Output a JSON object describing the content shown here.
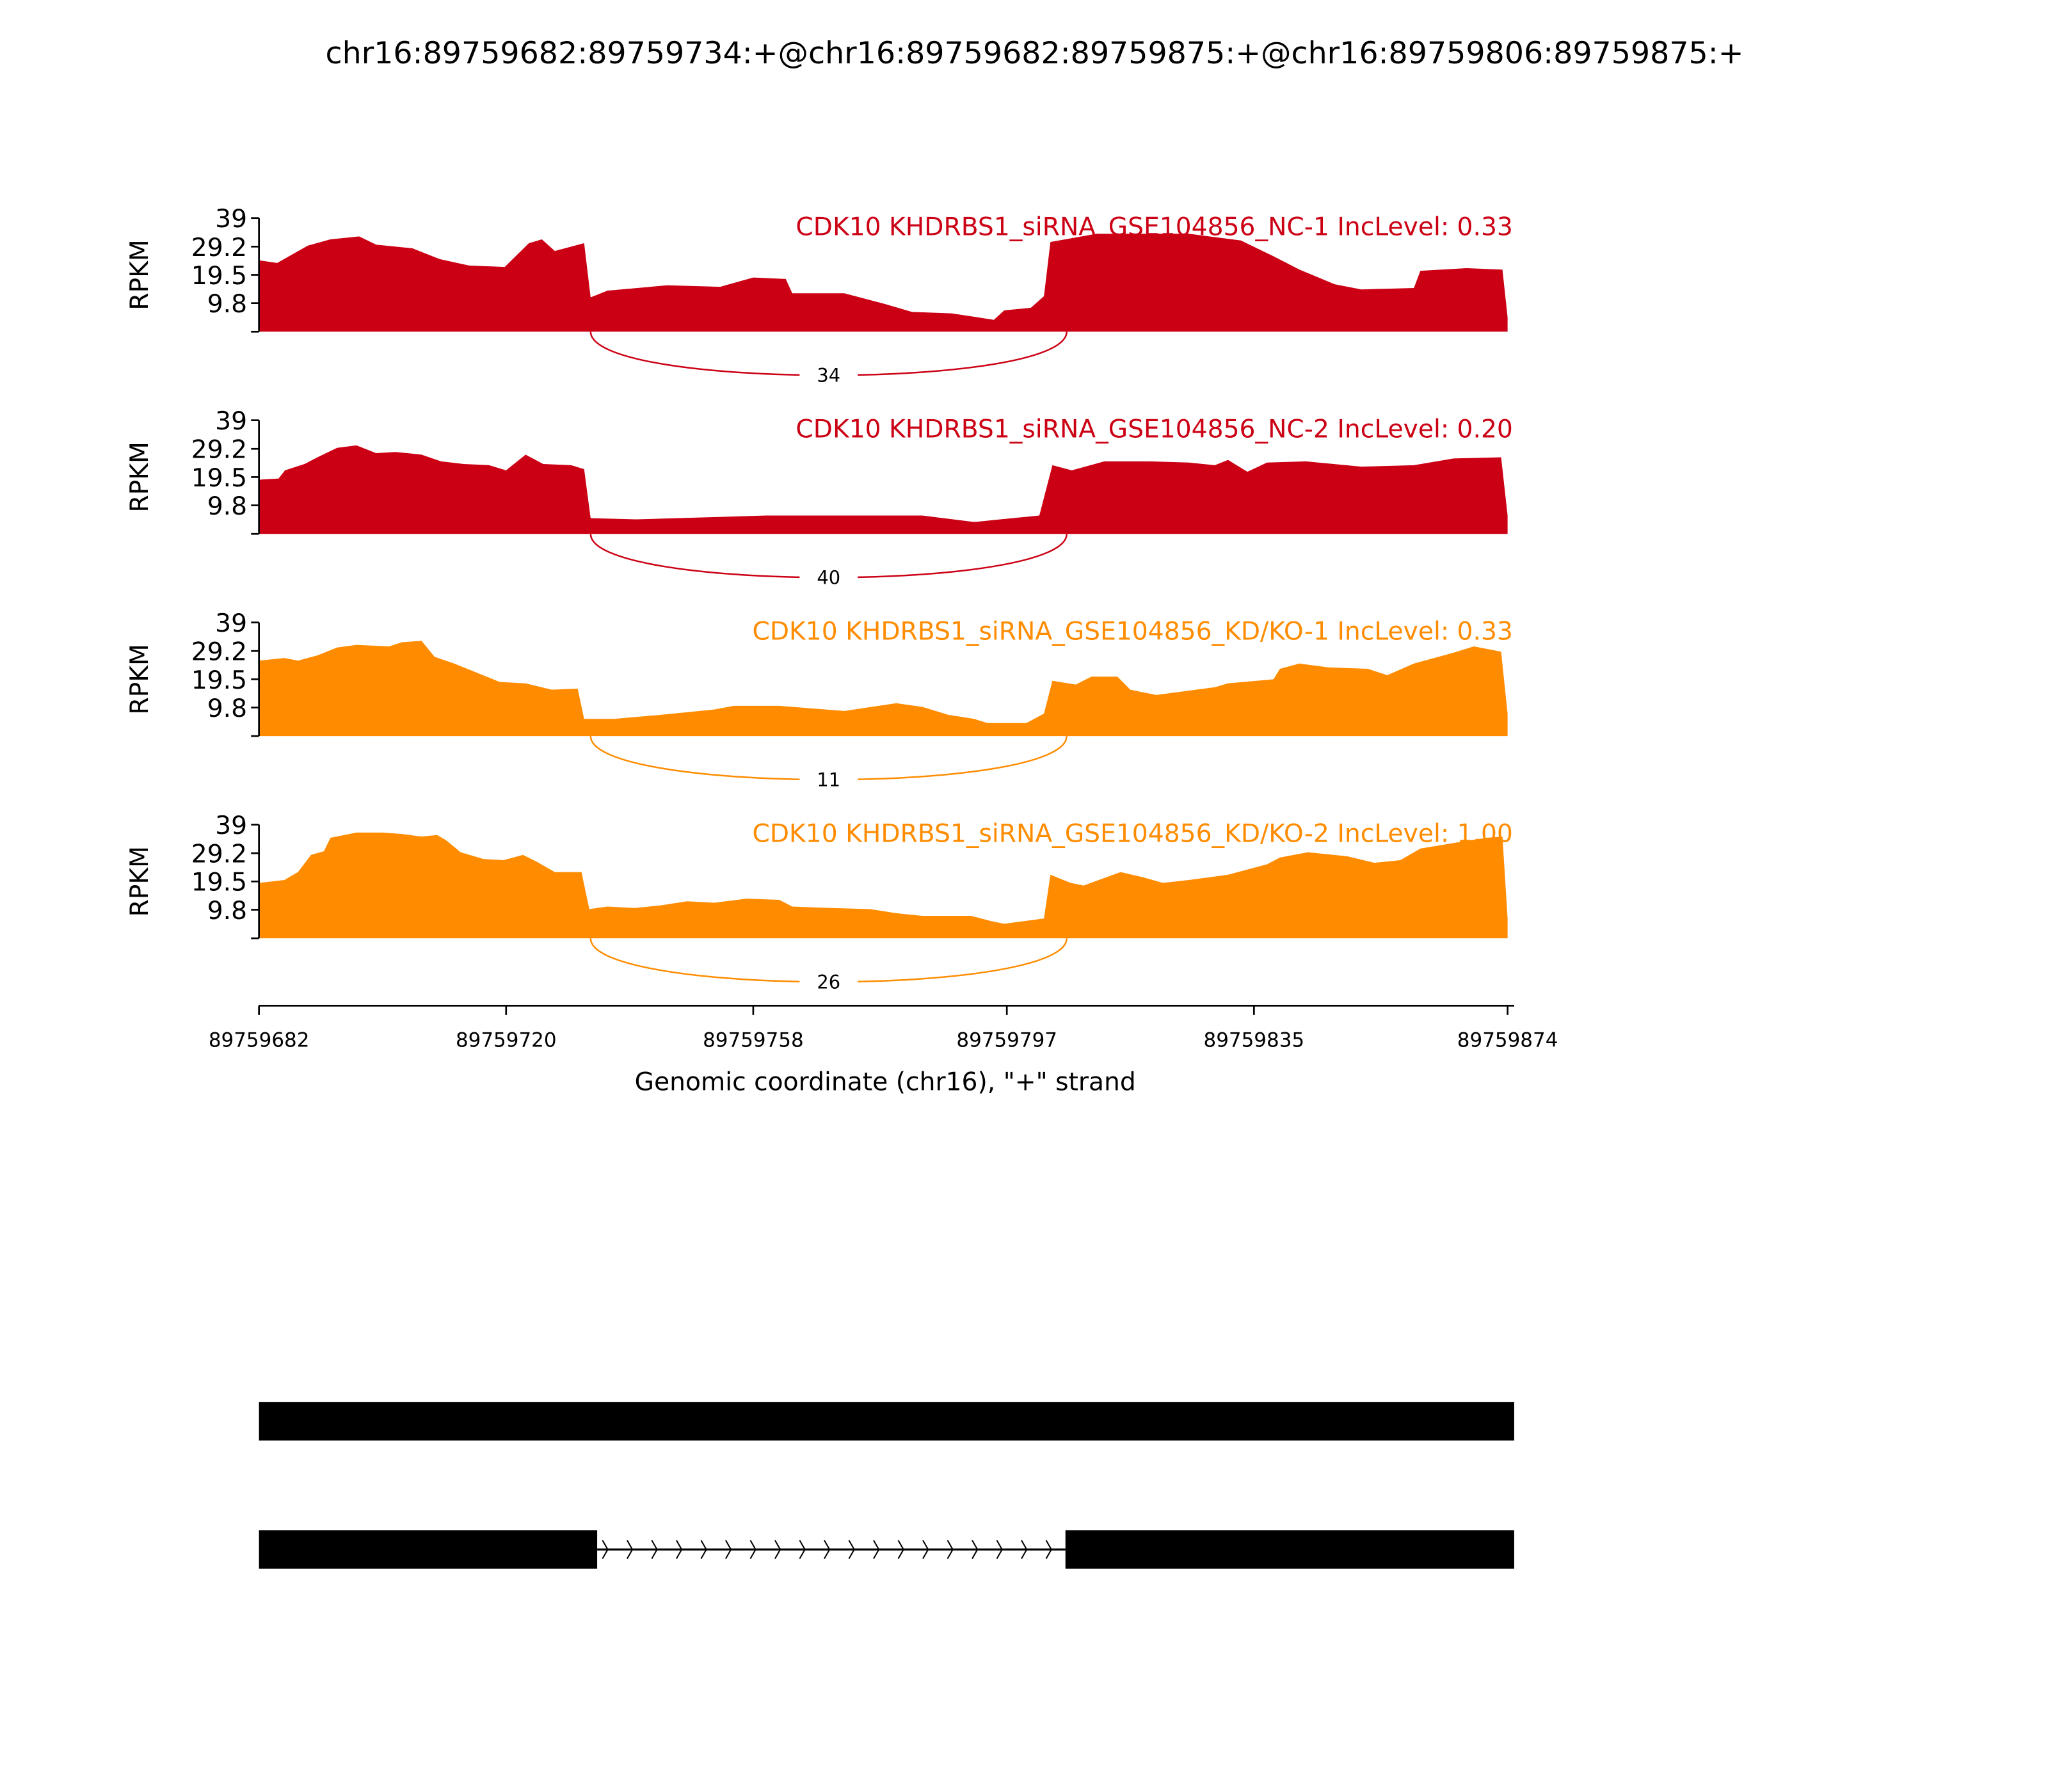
{
  "chart_data": {
    "type": "area",
    "title": "chr16:89759682:89759734:+@chr16:89759682:89759875:+@chr16:89759806:89759875:+",
    "xlabel": "Genomic coordinate (chr16), \"+\" strand",
    "ylabel": "RPKM",
    "xlim": [
      89759682,
      89759874
    ],
    "xticks": [
      "89759682",
      "89759720",
      "89759758",
      "89759797",
      "89759835",
      "89759874"
    ],
    "ylim": [
      0,
      39
    ],
    "yticks": [
      "9.8",
      "19.5",
      "29.2",
      "39"
    ],
    "junction": {
      "start": 89759733,
      "end": 89759806
    },
    "colors": {
      "nc": "#CC0014",
      "kd": "#FF8C00",
      "gene": "#000000"
    },
    "tracks": [
      {
        "label": "CDK10 KHDRBS1_siRNA_GSE104856_NC-1 IncLevel: 0.33",
        "color": "#CC0014",
        "junction_count": "34",
        "offsets": [
          0,
          2.8,
          7.5,
          11,
          15.4,
          18,
          23.6,
          27.8,
          32.3,
          37.8,
          41.5,
          43.5,
          45.5,
          50,
          51,
          53.6,
          62.8,
          70.9,
          76,
          81,
          82,
          90,
          96.3,
          100.4,
          106.5,
          113,
          114.6,
          118.7,
          120.7,
          121.7,
          128.8,
          143,
          151,
          156,
          160,
          165.4,
          169.5,
          177.6,
          178.6,
          185.7,
          191.2,
          192
        ],
        "values": [
          24.5,
          23.6,
          29.5,
          31.7,
          32.7,
          29.9,
          28.6,
          24.9,
          22.7,
          22.2,
          30.4,
          31.7,
          27.7,
          30.4,
          11.8,
          14.1,
          15.9,
          15.4,
          18.6,
          18.1,
          13.2,
          13.2,
          9.5,
          6.8,
          6.3,
          4.1,
          7.3,
          8.2,
          12.2,
          30.8,
          33.6,
          33.6,
          31.3,
          25.9,
          21.3,
          16.3,
          14.5,
          15,
          20.9,
          21.8,
          21.3,
          5
        ]
      },
      {
        "label": "CDK10 KHDRBS1_siRNA_GSE104856_NC-2 IncLevel: 0.20",
        "color": "#CC0014",
        "junction_count": "40",
        "offsets": [
          0,
          3,
          4,
          7,
          9,
          12,
          15,
          18,
          21,
          25,
          28,
          31.5,
          35.4,
          38,
          41,
          43.7,
          48,
          50,
          51,
          58,
          78,
          102,
          110,
          114,
          120,
          122,
          125,
          130,
          137,
          143,
          147,
          149,
          152,
          155,
          161,
          169.5,
          177.6,
          183.7,
          191,
          192
        ],
        "values": [
          18.6,
          19,
          21.8,
          24,
          26.3,
          29.5,
          30.4,
          27.7,
          28.1,
          27.2,
          24.9,
          24,
          23.6,
          21.8,
          27.2,
          24,
          23.6,
          22.2,
          5.4,
          5,
          6.3,
          6.3,
          4.1,
          5,
          6.3,
          23.6,
          21.8,
          24.9,
          24.9,
          24.5,
          23.6,
          25.4,
          21.3,
          24.5,
          24.9,
          23.1,
          23.6,
          25.9,
          26.3,
          6.3
        ]
      },
      {
        "label": "CDK10 KHDRBS1_siRNA_GSE104856_KD/KO-1 IncLevel: 0.33",
        "color": "#FF8C00",
        "junction_count": "11",
        "offsets": [
          0,
          3.9,
          6,
          9,
          12,
          15,
          20,
          22,
          25,
          27,
          30,
          33,
          37,
          41,
          45,
          49,
          50,
          54.6,
          61.8,
          70,
          73,
          80,
          90,
          98,
          102,
          106,
          110,
          112,
          118,
          120.7,
          122,
          125.6,
          128,
          132,
          134,
          138,
          141,
          147,
          149,
          156,
          157,
          160,
          164.4,
          170.5,
          173.5,
          177.6,
          183.7,
          186.8,
          191,
          192
        ],
        "values": [
          25.9,
          26.8,
          25.9,
          27.7,
          30.4,
          31.3,
          30.8,
          32.2,
          32.7,
          27.2,
          24.9,
          22.2,
          18.6,
          18.1,
          15.9,
          16.3,
          5.9,
          5.9,
          7.3,
          9.1,
          10.4,
          10.4,
          8.6,
          11.3,
          10,
          7.3,
          5.9,
          4.5,
          4.5,
          7.7,
          19,
          17.7,
          20.4,
          20.4,
          15.9,
          14.1,
          15,
          16.8,
          18.1,
          19.5,
          23.1,
          24.9,
          23.6,
          23.1,
          20.9,
          24.9,
          28.6,
          30.8,
          29,
          7.7
        ]
      },
      {
        "label": "CDK10 KHDRBS1_siRNA_GSE104856_KD/KO-2 IncLevel: 1.00",
        "color": "#FF8C00",
        "junction_count": "26",
        "offsets": [
          0,
          3.9,
          6,
          8,
          10,
          11,
          15,
          19,
          22,
          25,
          27.4,
          28.8,
          31,
          34.5,
          37.6,
          40.6,
          42.7,
          45.5,
          49.6,
          50.8,
          53.6,
          57.7,
          61.8,
          65.8,
          70,
          75,
          80,
          82,
          88,
          94,
          98,
          102,
          109.5,
          112.6,
          114.6,
          120.7,
          121.7,
          124.8,
          126.8,
          132.5,
          136,
          139,
          143,
          149,
          155,
          157,
          161.3,
          167.4,
          171.5,
          175.5,
          178.6,
          183.7,
          188.8,
          191.2,
          192
        ],
        "values": [
          19,
          20,
          22.7,
          28.6,
          29.9,
          34.5,
          36.3,
          36.3,
          35.8,
          34.9,
          35.4,
          33.6,
          29.5,
          27.2,
          26.8,
          28.6,
          26.3,
          22.7,
          22.7,
          10,
          10.9,
          10.4,
          11.3,
          12.7,
          12.2,
          13.6,
          13.2,
          10.9,
          10.4,
          10,
          8.6,
          7.7,
          7.7,
          5.9,
          5,
          6.8,
          21.8,
          19,
          18.1,
          22.7,
          20.9,
          19,
          20,
          21.8,
          25.4,
          27.7,
          29.5,
          28.1,
          25.9,
          26.8,
          30.8,
          32.7,
          34.5,
          34.9,
          6.8
        ]
      }
    ],
    "gene_model": {
      "transcripts": [
        {
          "exons": [
            [
              89759682,
              89759875
            ]
          ]
        },
        {
          "exons": [
            [
              89759682,
              89759734
            ],
            [
              89759806,
              89759875
            ]
          ],
          "strand": "+"
        }
      ]
    }
  }
}
